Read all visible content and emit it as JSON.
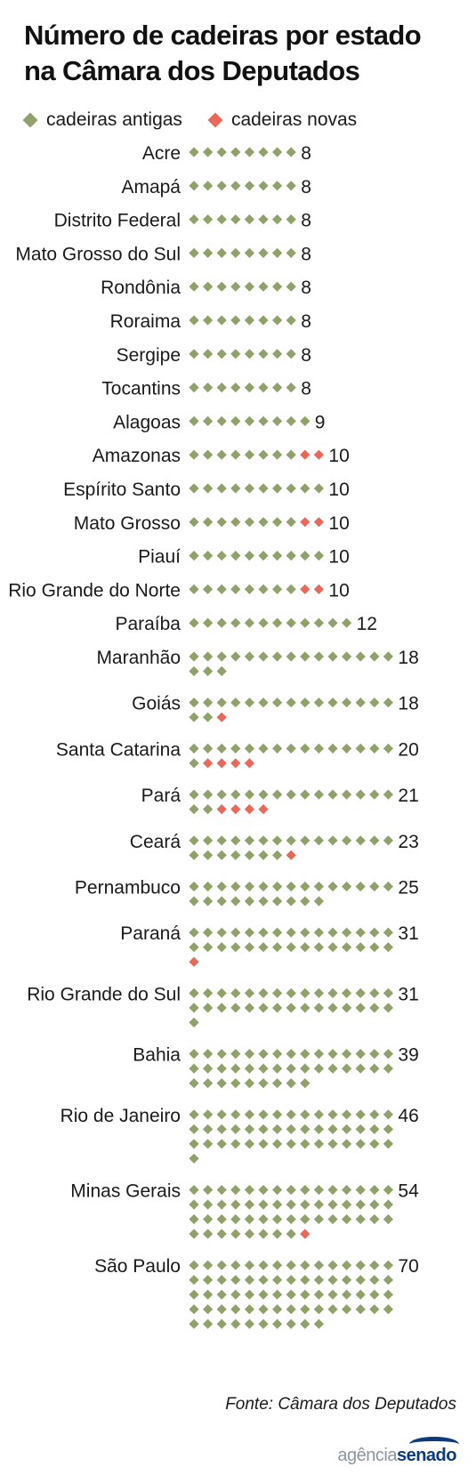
{
  "header": {
    "title_line1": "Número de cadeiras por estado",
    "title_line2": "na Câmara dos Deputados"
  },
  "legend": {
    "old_label": "cadeiras antigas",
    "new_label": "cadeiras novas"
  },
  "colors": {
    "old_seat": "#8fa26a",
    "new_seat": "#e8695a",
    "text": "#1a1a1a"
  },
  "chart_data": {
    "type": "dot-matrix",
    "categories": [
      "Acre",
      "Amapá",
      "Distrito Federal",
      "Mato Grosso do Sul",
      "Rondônia",
      "Roraima",
      "Sergipe",
      "Tocantins",
      "Alagoas",
      "Amazonas",
      "Espírito Santo",
      "Mato Grosso",
      "Piauí",
      "Rio Grande do Norte",
      "Paraíba",
      "Maranhão",
      "Goiás",
      "Santa Catarina",
      "Pará",
      "Ceará",
      "Pernambuco",
      "Paraná",
      "Rio Grande do Sul",
      "Bahia",
      "Rio de Janeiro",
      "Minas Gerais",
      "São Paulo"
    ],
    "series": [
      {
        "name": "cadeiras antigas",
        "values": [
          8,
          8,
          8,
          8,
          8,
          8,
          8,
          8,
          9,
          8,
          10,
          8,
          10,
          8,
          12,
          18,
          17,
          16,
          17,
          22,
          25,
          30,
          31,
          39,
          46,
          53,
          70
        ]
      },
      {
        "name": "cadeiras novas",
        "values": [
          0,
          0,
          0,
          0,
          0,
          0,
          0,
          0,
          0,
          2,
          0,
          2,
          0,
          2,
          0,
          0,
          1,
          4,
          4,
          1,
          0,
          1,
          0,
          0,
          0,
          1,
          0
        ]
      }
    ],
    "totals": [
      8,
      8,
      8,
      8,
      8,
      8,
      8,
      8,
      9,
      10,
      10,
      10,
      10,
      10,
      12,
      18,
      18,
      20,
      21,
      23,
      25,
      31,
      31,
      39,
      46,
      54,
      70
    ],
    "dots_per_row": 15
  },
  "footer": {
    "source": "Fonte: Câmara dos Deputados",
    "logo_part1": "agência",
    "logo_part2": "senado"
  }
}
